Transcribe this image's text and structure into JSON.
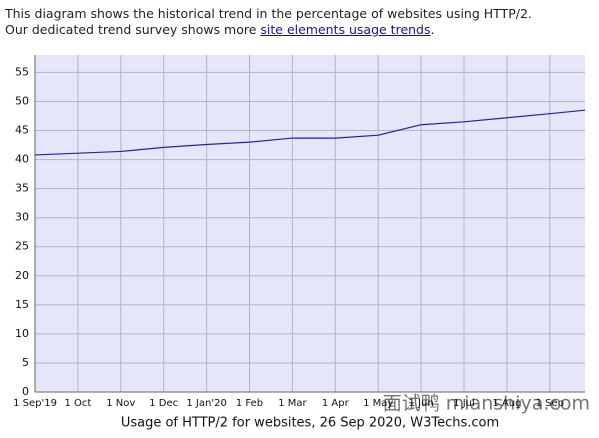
{
  "intro": {
    "line1": "This diagram shows the historical trend in the percentage of websites using HTTP/2.",
    "line2": "Our dedicated trend survey shows more ",
    "link": "site elements usage trends",
    "end": "."
  },
  "chart_data": {
    "type": "line",
    "categories": [
      "1 Sep'19",
      "1 Oct",
      "1 Nov",
      "1 Dec",
      "1 Jan'20",
      "1 Feb",
      "1 Mar",
      "1 Apr",
      "1 May",
      "1 Jun",
      "1 Jul",
      "1 Aug",
      "1 Sep",
      null
    ],
    "series": [
      {
        "name": "HTTP/2",
        "color": "#2222aa",
        "values": [
          40.8,
          41.1,
          41.4,
          42.1,
          42.6,
          43.0,
          43.7,
          43.7,
          44.2,
          46.0,
          46.5,
          47.2,
          47.9,
          48.5
        ]
      }
    ],
    "ylim": [
      0,
      58
    ],
    "yticks": [
      0,
      5,
      10,
      15,
      20,
      25,
      30,
      35,
      40,
      45,
      50,
      55
    ],
    "grid": true,
    "caption": "Usage of HTTP/2 for websites, 26 Sep 2020, W3Techs.com",
    "watermark": "面试鸭 mianshiya.com"
  }
}
